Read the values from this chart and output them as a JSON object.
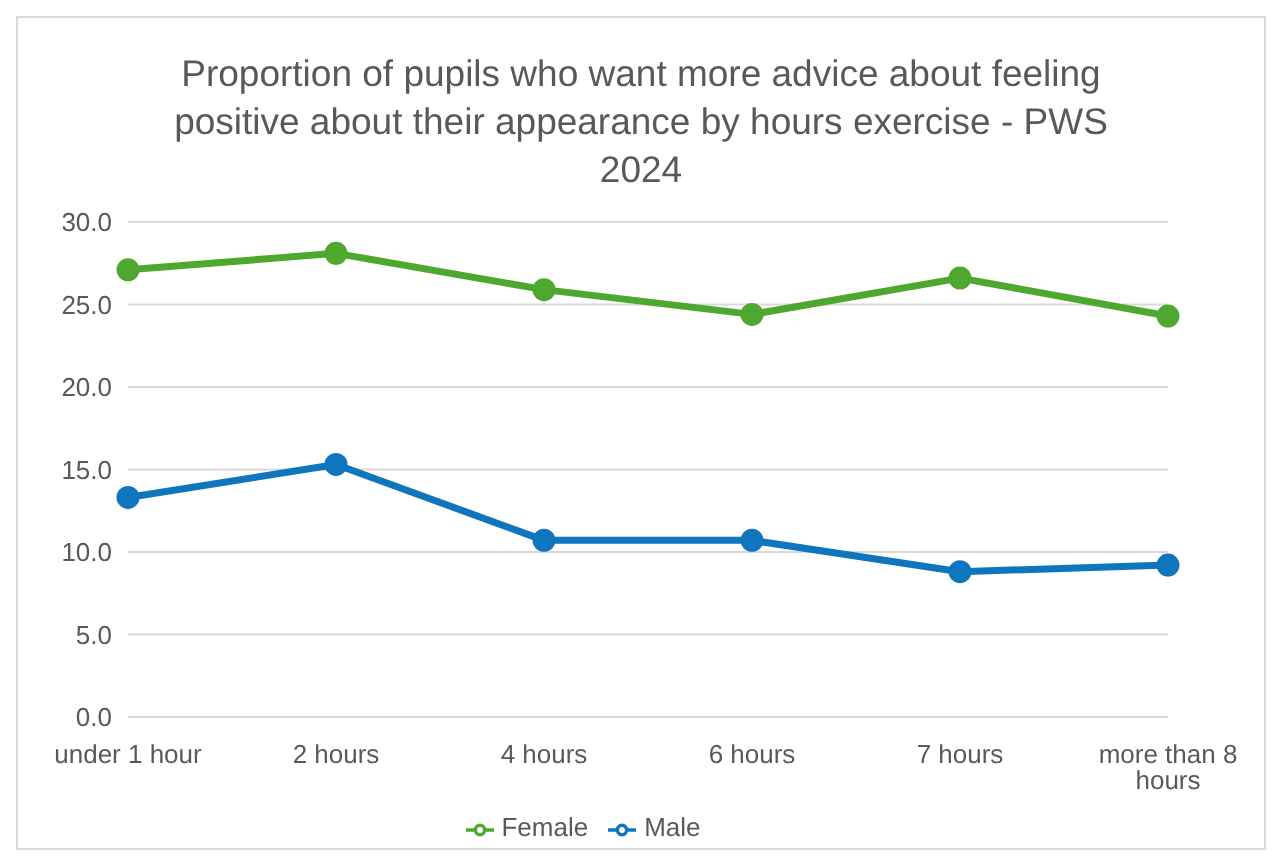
{
  "chart_data": {
    "type": "line",
    "title": "Proportion of pupils who want more advice about feeling positive about their appearance by hours exercise - PWS 2024",
    "categories": [
      "under 1 hour",
      "2 hours",
      "4 hours",
      "6 hours",
      "7 hours",
      "more than 8 hours"
    ],
    "series": [
      {
        "name": "Female",
        "color": "#4ea72e",
        "values": [
          27.1,
          28.1,
          25.9,
          24.4,
          26.6,
          24.3
        ]
      },
      {
        "name": "Male",
        "color": "#0f75bd",
        "values": [
          13.3,
          15.3,
          10.7,
          10.7,
          8.8,
          9.2
        ]
      }
    ],
    "ylim": [
      0,
      30
    ],
    "yticks": [
      {
        "value": 0,
        "label": "0.0"
      },
      {
        "value": 5,
        "label": "5.0"
      },
      {
        "value": 10,
        "label": "10.0"
      },
      {
        "value": 15,
        "label": "15.0"
      },
      {
        "value": 20,
        "label": "20.0"
      },
      {
        "value": 25,
        "label": "25.0"
      },
      {
        "value": 30,
        "label": "30.0"
      }
    ],
    "grid": "y",
    "legend": "bottom",
    "marker": "circle",
    "line_style": "solid"
  }
}
